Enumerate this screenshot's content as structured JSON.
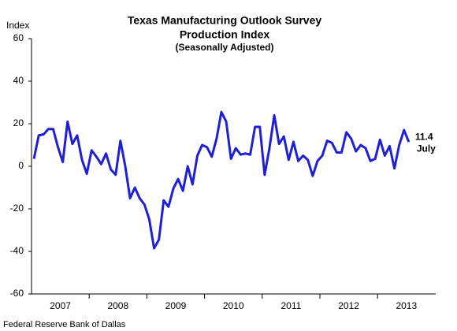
{
  "chart_data": {
    "type": "line",
    "title": "Texas Manufacturing Outlook Survey",
    "subtitle": "Production Index",
    "note": "(Seasonally Adjusted)",
    "y_label": "Index",
    "source": "Federal Reserve Bank of Dallas",
    "annotation": "July",
    "categories": [
      null,
      null,
      null,
      null,
      null,
      null,
      "2007",
      null,
      null,
      null,
      null,
      null,
      null,
      null,
      null,
      null,
      null,
      null,
      "2008",
      null,
      null,
      null,
      null,
      null,
      null,
      null,
      null,
      null,
      null,
      null,
      "2009",
      null,
      null,
      null,
      null,
      null,
      null,
      null,
      null,
      null,
      null,
      null,
      "2010",
      null,
      null,
      null,
      null,
      null,
      null,
      null,
      null,
      null,
      null,
      null,
      "2011",
      null,
      null,
      null,
      null,
      null,
      null,
      null,
      null,
      null,
      null,
      null,
      "2012",
      null,
      null,
      null,
      null,
      null,
      null,
      null,
      null,
      null,
      null,
      null,
      "2013"
    ],
    "series": [
      {
        "name": "Production Index",
        "color": "#1f1fd6",
        "values": [
          3.5,
          14.5,
          15,
          17.5,
          17.5,
          9,
          2,
          21,
          10.5,
          14.5,
          3,
          -3.5,
          7.5,
          4.5,
          1,
          6,
          -1.5,
          -4,
          12,
          0,
          -15,
          -10,
          -15,
          -18,
          -25,
          -38.5,
          -34.5,
          -16,
          -19,
          -10.5,
          -6,
          -11.5,
          0,
          -8.5,
          5,
          10,
          9,
          4.5,
          13,
          25.5,
          21,
          3.5,
          8.5,
          5.5,
          6,
          5.5,
          18.5,
          18.5,
          -4,
          8.5,
          24,
          10.5,
          14,
          3,
          11.5,
          2.5,
          5,
          3,
          -4.5,
          2.5,
          5,
          12,
          11,
          6.5,
          6.5,
          16,
          13,
          7,
          10,
          8.5,
          2.5,
          3.5,
          12.5,
          5,
          9.5,
          -1,
          10,
          17,
          11.4
        ]
      }
    ],
    "ylim": [
      -60,
      60
    ],
    "yticks": [
      60,
      40,
      20,
      0,
      -20,
      -40,
      -60
    ],
    "grid": false
  }
}
